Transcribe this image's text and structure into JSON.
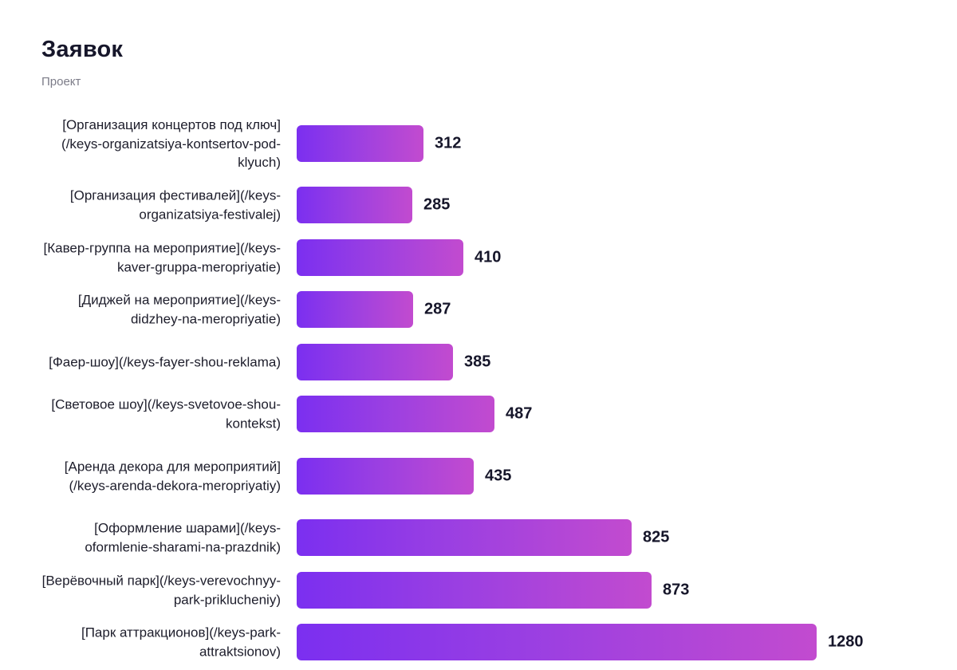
{
  "chart_data": {
    "type": "bar",
    "orientation": "horizontal",
    "title": "Заявок",
    "subtitle": "Проект",
    "xlim": [
      0,
      1280
    ],
    "grid": false,
    "legend": "none",
    "bar_color_start": "#7b2ff0",
    "bar_color_end": "#c24bcf",
    "categories": [
      "[Организация концертов под ключ](/keys-organizatsiya-kontsertov-pod-klyuch)",
      "[Организация фестивалей](/keys-organizatsiya-festivalej)",
      "[Кавер-группа на мероприятие](/keys-kaver-gruppa-meropriyatie)",
      "[Диджей на мероприятие](/keys-didzhey-na-meropriyatie)",
      "[Фаер-шоу](/keys-fayer-shou-reklama)",
      "[Световое шоу](/keys-svetovoe-shou-kontekst)",
      "[Аренда декора для мероприятий](/keys-arenda-dekora-meropriyatiy)",
      "[Оформление шарами](/keys-oformlenie-sharami-na-prazdnik)",
      "[Верёвочный парк](/keys-verevochnyy-park-priklucheniy)",
      "[Парк аттракционов](/keys-park-attraktsionov)"
    ],
    "values": [
      312,
      285,
      410,
      287,
      385,
      487,
      435,
      825,
      873,
      1280
    ]
  }
}
